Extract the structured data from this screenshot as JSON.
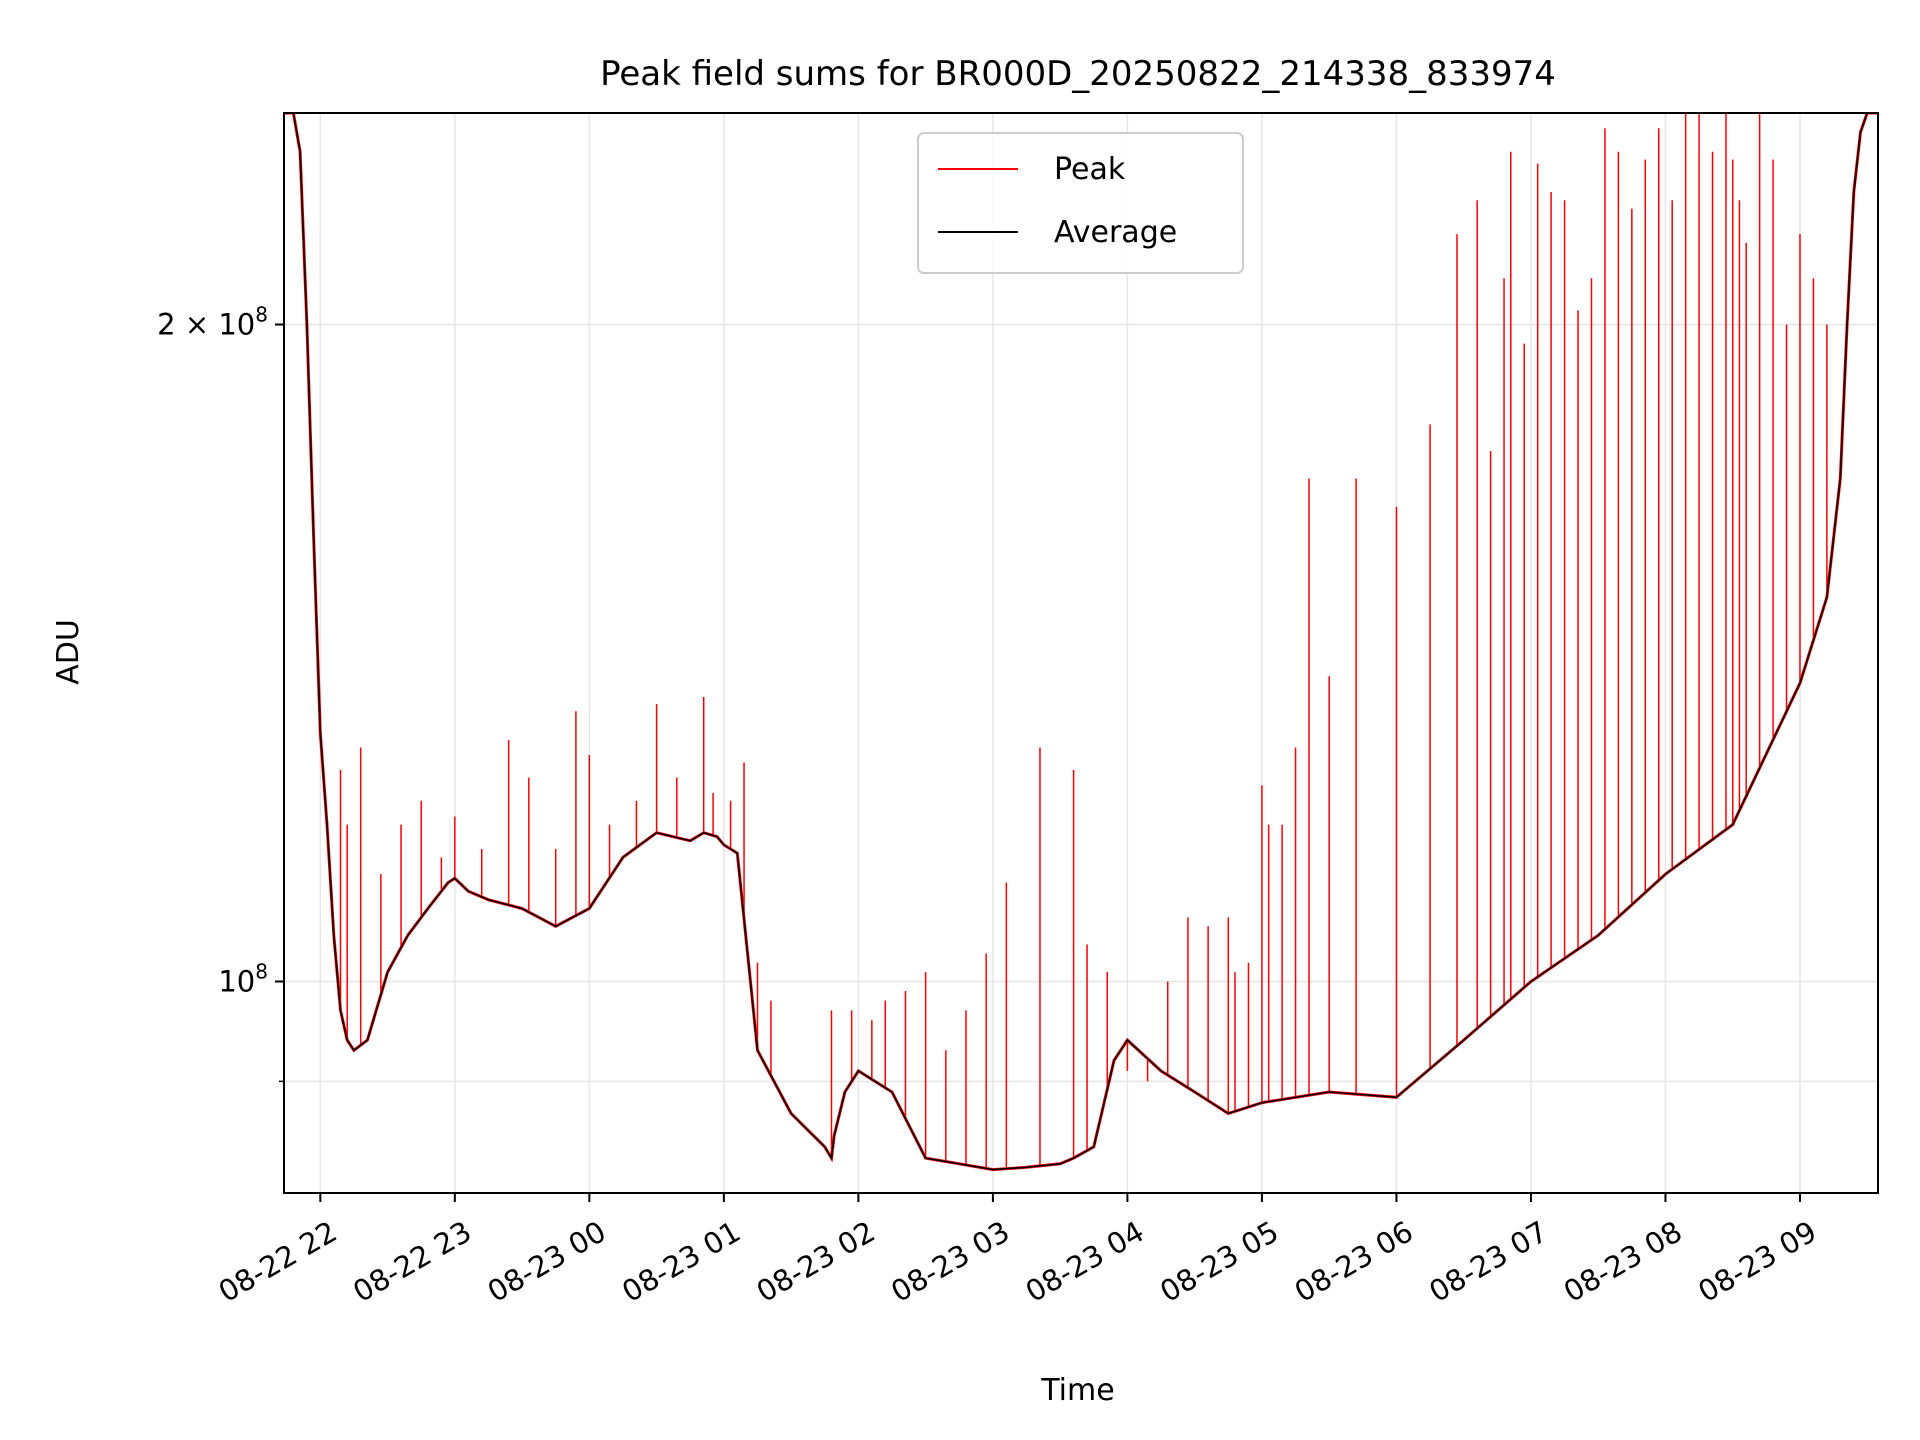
{
  "chart_data": {
    "type": "line",
    "title": "Peak field sums for BR000D_20250822_214338_833974",
    "xlabel": "Time",
    "ylabel": "ADU",
    "y_scale": "log",
    "grid": true,
    "legend_position": "upper center",
    "x_tick_labels": [
      "08-22 22",
      "08-22 23",
      "08-23 00",
      "08-23 01",
      "08-23 02",
      "08-23 03",
      "08-23 04",
      "08-23 05",
      "08-23 06",
      "08-23 07",
      "08-23 08",
      "08-23 09"
    ],
    "y_tick_labels": [
      {
        "value": 100000000,
        "base": "10",
        "exp": "8",
        "mant": ""
      },
      {
        "value": 200000000,
        "base": "10",
        "exp": "8",
        "mant": "2 × "
      }
    ],
    "xlim_hours": [
      -0.27,
      11.58
    ],
    "ylim": [
      80000000,
      250000000
    ],
    "x_start_label": "2025-08-22 21:43",
    "series": [
      {
        "name": "Average",
        "color": "#000000",
        "x_hours": [
          -0.27,
          -0.2,
          -0.15,
          -0.1,
          -0.05,
          0.0,
          0.05,
          0.1,
          0.15,
          0.2,
          0.25,
          0.35,
          0.5,
          0.65,
          0.8,
          0.95,
          1.0,
          1.1,
          1.25,
          1.5,
          1.75,
          2.0,
          2.25,
          2.5,
          2.75,
          2.85,
          2.95,
          3.0,
          3.05,
          3.1,
          3.25,
          3.5,
          3.75,
          3.8,
          3.82,
          3.9,
          4.0,
          4.25,
          4.5,
          4.75,
          5.0,
          5.25,
          5.5,
          5.6,
          5.75,
          5.9,
          6.0,
          6.25,
          6.5,
          6.75,
          7.0,
          7.5,
          8.0,
          8.5,
          9.0,
          9.5,
          10.0,
          10.5,
          11.0,
          11.2,
          11.3,
          11.35,
          11.4,
          11.45,
          11.5,
          11.58
        ],
        "values": [
          250000000,
          250000000,
          240000000,
          200000000,
          160000000,
          130000000,
          118000000,
          105000000,
          97000000,
          94000000,
          93000000,
          94000000,
          101000000,
          105000000,
          108000000,
          111000000,
          111500000,
          110000000,
          109000000,
          108000000,
          106000000,
          108000000,
          114000000,
          117000000,
          116000000,
          117000000,
          116500000,
          115500000,
          115000000,
          114500000,
          93000000,
          87000000,
          84000000,
          83000000,
          85000000,
          89000000,
          91000000,
          89000000,
          83000000,
          82500000,
          82000000,
          82200000,
          82500000,
          83000000,
          84000000,
          92000000,
          94000000,
          91000000,
          89000000,
          87000000,
          88000000,
          89000000,
          88500000,
          94000000,
          100000000,
          105000000,
          112000000,
          118000000,
          137000000,
          150000000,
          170000000,
          200000000,
          230000000,
          245000000,
          250000000,
          250000000
        ]
      },
      {
        "name": "Peak",
        "color": "#ff0000",
        "x_hours": [
          -0.27,
          -0.2,
          -0.15,
          -0.1,
          -0.05,
          0.0,
          0.05,
          0.1,
          0.15,
          0.2,
          0.25,
          0.35,
          0.5,
          0.65,
          0.8,
          0.95,
          1.0,
          1.1,
          1.25,
          1.5,
          1.75,
          2.0,
          2.25,
          2.5,
          2.75,
          2.85,
          2.95,
          3.0,
          3.05,
          3.1,
          3.25,
          3.5,
          3.75,
          3.8,
          3.82,
          3.9,
          4.0,
          4.25,
          4.5,
          4.75,
          5.0,
          5.25,
          5.5,
          5.6,
          5.75,
          5.9,
          6.0,
          6.25,
          6.5,
          6.75,
          7.0,
          7.5,
          8.0,
          8.5,
          9.0,
          9.5,
          10.0,
          10.5,
          11.0,
          11.2,
          11.3,
          11.35,
          11.4,
          11.45,
          11.5,
          11.58
        ],
        "values": [
          250000000,
          250000000,
          240000000,
          200000000,
          160000000,
          130000000,
          118000000,
          105000000,
          97000000,
          94000000,
          93000000,
          94000000,
          101000000,
          105000000,
          108000000,
          111000000,
          111500000,
          110000000,
          109000000,
          108000000,
          106000000,
          108000000,
          114000000,
          117000000,
          116000000,
          117000000,
          116500000,
          115500000,
          115000000,
          114500000,
          93000000,
          87000000,
          84000000,
          83000000,
          85000000,
          89000000,
          91000000,
          89000000,
          83000000,
          82500000,
          82000000,
          82200000,
          82500000,
          83000000,
          84000000,
          92000000,
          94000000,
          91000000,
          89000000,
          87000000,
          88000000,
          89000000,
          88500000,
          94000000,
          100000000,
          105000000,
          112000000,
          118000000,
          137000000,
          150000000,
          170000000,
          200000000,
          230000000,
          245000000,
          250000000,
          250000000
        ]
      }
    ],
    "peak_spikes": {
      "x_hours": [
        0.15,
        0.2,
        0.3,
        0.45,
        0.6,
        0.75,
        0.9,
        1.0,
        1.2,
        1.4,
        1.55,
        1.75,
        1.9,
        2.0,
        2.15,
        2.35,
        2.5,
        2.65,
        2.85,
        2.92,
        3.05,
        3.15,
        3.25,
        3.35,
        3.8,
        3.95,
        4.1,
        4.2,
        4.35,
        4.5,
        4.65,
        4.8,
        4.95,
        5.1,
        5.35,
        5.6,
        5.7,
        5.85,
        6.0,
        6.15,
        6.3,
        6.45,
        6.6,
        6.75,
        6.8,
        6.9,
        7.0,
        7.05,
        7.15,
        7.25,
        7.35,
        7.5,
        7.7,
        8.0,
        8.25,
        8.45,
        8.6,
        8.7,
        8.8,
        8.85,
        8.95,
        9.05,
        9.15,
        9.25,
        9.35,
        9.45,
        9.55,
        9.65,
        9.75,
        9.85,
        9.95,
        10.05,
        10.15,
        10.25,
        10.35,
        10.45,
        10.5,
        10.55,
        10.6,
        10.7,
        10.8,
        10.9,
        11.0,
        11.1,
        11.2
      ],
      "values": [
        125000000,
        118000000,
        128000000,
        112000000,
        118000000,
        121000000,
        114000000,
        119000000,
        115000000,
        129000000,
        124000000,
        115000000,
        133000000,
        127000000,
        118000000,
        121000000,
        134000000,
        124000000,
        135000000,
        122000000,
        121000000,
        126000000,
        102000000,
        98000000,
        97000000,
        97000000,
        96000000,
        98000000,
        99000000,
        101000000,
        93000000,
        97000000,
        103000000,
        111000000,
        128000000,
        125000000,
        104000000,
        101000000,
        91000000,
        90000000,
        100000000,
        107000000,
        106000000,
        107000000,
        101000000,
        102000000,
        123000000,
        118000000,
        118000000,
        128000000,
        170000000,
        138000000,
        170000000,
        165000000,
        180000000,
        220000000,
        228000000,
        175000000,
        210000000,
        240000000,
        196000000,
        237000000,
        230000000,
        228000000,
        203000000,
        210000000,
        246000000,
        240000000,
        226000000,
        238000000,
        246000000,
        228000000,
        250000000,
        250000000,
        240000000,
        250000000,
        238000000,
        228000000,
        218000000,
        250000000,
        238000000,
        200000000,
        220000000,
        210000000,
        200000000
      ]
    }
  }
}
